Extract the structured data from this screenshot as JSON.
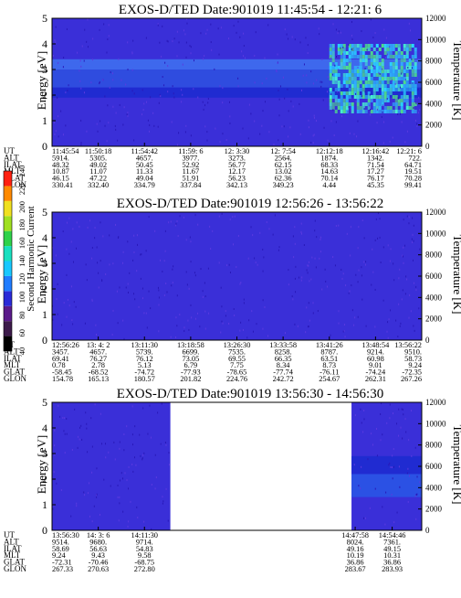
{
  "chart_data": [
    {
      "type": "heatmap",
      "title": "EXOS-D/TED  Date:901019  11:45:54 - 12:21: 6",
      "ylabel": "Energy [eV]",
      "y2label": "Temperature [K]",
      "ylim": [
        0,
        5
      ],
      "y2lim": [
        0,
        12000
      ],
      "yticks": [
        "0",
        "1",
        "2",
        "3",
        "4",
        "5"
      ],
      "y2ticks": [
        "0",
        "2000",
        "4000",
        "6000",
        "8000",
        "10000",
        "12000"
      ],
      "xlim": [
        0,
        1
      ],
      "data_coverage": [
        [
          0,
          1
        ]
      ],
      "background_color": "#3a2fd8",
      "bands": [
        {
          "from": 0.0,
          "y0": 1.9,
          "y1": 2.3,
          "color": "#1e2bd0"
        },
        {
          "from": 0.0,
          "y0": 2.3,
          "y1": 3.0,
          "color": "#2f50e0"
        },
        {
          "from": 0.0,
          "y0": 3.0,
          "y1": 3.4,
          "color": "#3f6ff0"
        }
      ],
      "hot_region": {
        "x0": 0.75,
        "x1": 0.98,
        "y0": 1.3,
        "y1": 4.0,
        "colors": [
          "#29d8ff",
          "#46f0d0",
          "#4ee08a",
          "#2fb8ff"
        ]
      },
      "rows": [
        {
          "label": "UT",
          "values": [
            "11:45:54",
            "11:50:18",
            "11:54:42",
            "11:59: 6",
            "12: 3:30",
            "12: 7:54",
            "12:12:18",
            "12:16:42",
            "12:21: 6"
          ]
        },
        {
          "label": "ALT",
          "values": [
            "5914.",
            "5305.",
            "4657.",
            "3977.",
            "3273.",
            "2564.",
            "1874.",
            "1342.",
            "722."
          ]
        },
        {
          "label": "ILAT",
          "values": [
            "48.32",
            "49.02",
            "50.45",
            "52.92",
            "56.77",
            "62.15",
            "68.33",
            "71.54",
            "64.71"
          ]
        },
        {
          "label": "MLT",
          "values": [
            "10.87",
            "11.07",
            "11.33",
            "11.67",
            "12.17",
            "13.02",
            "14.63",
            "17.27",
            "19.51"
          ]
        },
        {
          "label": "GLAT",
          "values": [
            "46.15",
            "47.22",
            "49.04",
            "51.91",
            "56.23",
            "62.36",
            "70.14",
            "76.17",
            "70.28"
          ]
        },
        {
          "label": "GLON",
          "values": [
            "330.41",
            "332.40",
            "334.79",
            "337.84",
            "342.13",
            "349.23",
            "4.44",
            "45.35",
            "99.41"
          ]
        }
      ],
      "row_positions": [
        0.0,
        0.125,
        0.25,
        0.375,
        0.5,
        0.625,
        0.75,
        0.875,
        1.0
      ]
    },
    {
      "type": "heatmap",
      "title": "EXOS-D/TED  Date:901019  12:56:26 - 13:56:22",
      "ylabel": "Energy [eV]",
      "y2label": "Temperature [K]",
      "ylim": [
        0,
        5
      ],
      "y2lim": [
        0,
        12000
      ],
      "yticks": [
        "0",
        "1",
        "2",
        "3",
        "4",
        "5"
      ],
      "y2ticks": [
        "0",
        "2000",
        "4000",
        "6000",
        "8000",
        "10000",
        "12000"
      ],
      "xlim": [
        0,
        1
      ],
      "data_coverage": [
        [
          0,
          1
        ]
      ],
      "background_color": "#3a2fd8",
      "bands": [],
      "rows": [
        {
          "label": "UT",
          "values": [
            "12:56:26",
            "13: 4: 2",
            "13:11:30",
            "13:18:58",
            "13:26:30",
            "13:33:58",
            "13:41:26",
            "13:48:54",
            "13:56:22"
          ]
        },
        {
          "label": "ALT",
          "values": [
            "3457.",
            "4657.",
            "5739.",
            "6699.",
            "7535.",
            "8258.",
            "8787.",
            "9214.",
            "9510."
          ]
        },
        {
          "label": "ILAT",
          "values": [
            "69.41",
            "76.27",
            "76.12",
            "73.05",
            "69.55",
            "66.35",
            "63.51",
            "60.98",
            "58.73"
          ]
        },
        {
          "label": "MLT",
          "values": [
            "0.78",
            "2.78",
            "5.13",
            "6.79",
            "7.75",
            "8.34",
            "8.73",
            "9.01",
            "9.24"
          ]
        },
        {
          "label": "GLAT",
          "values": [
            "-58.45",
            "-68.52",
            "-74.72",
            "-77.93",
            "-78.65",
            "-77.74",
            "-76.11",
            "-74.24",
            "-72.35"
          ]
        },
        {
          "label": "GLON",
          "values": [
            "154.78",
            "165.13",
            "180.57",
            "201.82",
            "224.76",
            "242.72",
            "254.67",
            "262.31",
            "267.26"
          ]
        }
      ],
      "row_positions": [
        0.0,
        0.125,
        0.25,
        0.375,
        0.5,
        0.625,
        0.75,
        0.875,
        1.0
      ]
    },
    {
      "type": "heatmap",
      "title": "EXOS-D/TED  Date:901019  13:56:30 - 14:56:30",
      "ylabel": "Energy [eV]",
      "y2label": "Temperature [K]",
      "ylim": [
        0,
        5
      ],
      "y2lim": [
        0,
        12000
      ],
      "yticks": [
        "0",
        "1",
        "2",
        "3",
        "4",
        "5"
      ],
      "y2ticks": [
        "0",
        "2000",
        "4000",
        "6000",
        "8000",
        "10000",
        "12000"
      ],
      "xlim": [
        0,
        1
      ],
      "data_coverage": [
        [
          0,
          0.32
        ],
        [
          0.81,
          1
        ]
      ],
      "background_color": "#3a2fd8",
      "bands": [
        {
          "from": 0.81,
          "y0": 1.3,
          "y1": 2.2,
          "color": "#2a55e6"
        },
        {
          "from": 0.81,
          "y0": 2.2,
          "y1": 2.9,
          "color": "#1e2bd0"
        }
      ],
      "rows": [
        {
          "label": "UT",
          "values": [
            "13:56:30",
            "14: 3: 6",
            "14:11:30",
            "14:47:58",
            "14:54:46"
          ]
        },
        {
          "label": "ALT",
          "values": [
            "9514.",
            "9680.",
            "9714.",
            "8024.",
            "7361."
          ]
        },
        {
          "label": "ILAT",
          "values": [
            "58.69",
            "56.63",
            "54.83",
            "49.16",
            "49.15"
          ]
        },
        {
          "label": "MLT",
          "values": [
            "9.24",
            "9.43",
            "9.58",
            "10.19",
            "10.31"
          ]
        },
        {
          "label": "GLAT",
          "values": [
            "-72.31",
            "-70.46",
            "-68.75",
            "36.86",
            "36.86"
          ]
        },
        {
          "label": "GLON",
          "values": [
            "267.33",
            "270.63",
            "272.80",
            "283.67",
            "283.93"
          ]
        }
      ],
      "row_positions": [
        0.0,
        0.125,
        0.25,
        0.82,
        0.92
      ]
    }
  ],
  "colorbar": {
    "label": "Second Harmonic Current",
    "ticks": [
      "40",
      "60",
      "80",
      "100",
      "120",
      "140",
      "160",
      "180",
      "200",
      "220",
      "240"
    ],
    "colors": [
      "#000000",
      "#3c1a4a",
      "#5a1a8a",
      "#2a2ad8",
      "#1f7cff",
      "#18c8ff",
      "#19e0c0",
      "#2fd24a",
      "#a0e020",
      "#f0e020",
      "#ff8a00",
      "#ff2010"
    ]
  }
}
